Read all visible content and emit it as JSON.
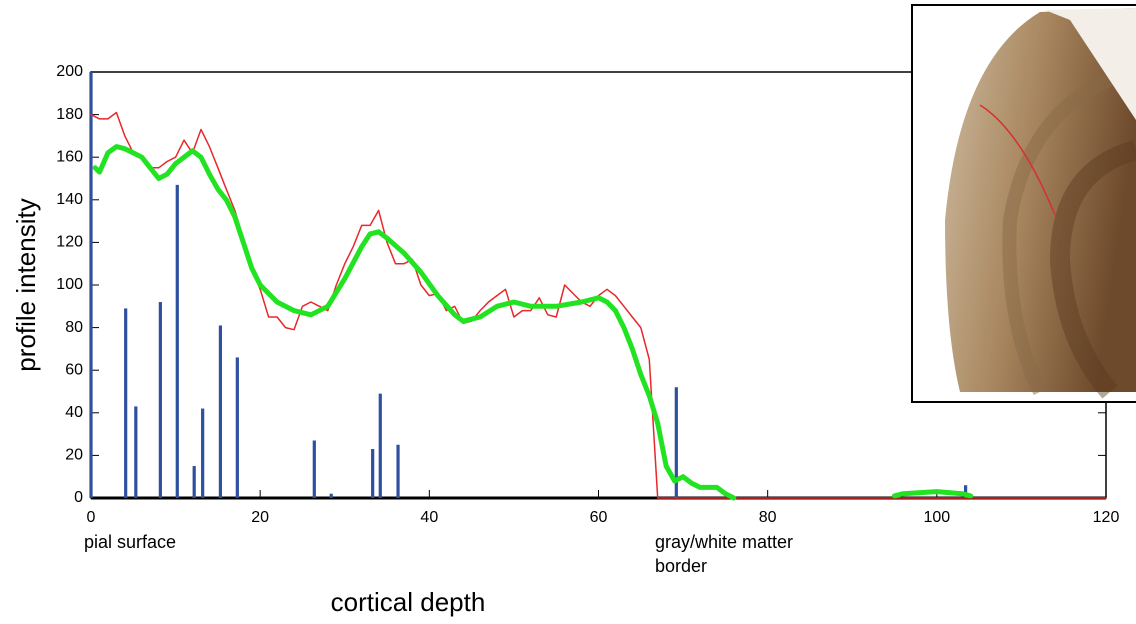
{
  "chart_data": {
    "type": "line",
    "xlabel": "cortical depth",
    "ylabel": "profile intensity",
    "xlim": [
      0,
      120
    ],
    "xticks": [
      0,
      20,
      40,
      60,
      80,
      100,
      120
    ],
    "ylim": [
      0,
      200
    ],
    "yticks": [
      0,
      20,
      40,
      60,
      80,
      100,
      120,
      140,
      160,
      180,
      200
    ],
    "annotations": [
      "pial surface",
      "gray/white matter border"
    ],
    "series": [
      {
        "type": "bar",
        "color": "#2f4f9f",
        "x": [
          0,
          4.1,
          5.3,
          8.2,
          10.2,
          12.2,
          13.2,
          15.3,
          17.3,
          26.4,
          28.4,
          33.3,
          34.2,
          36.3,
          69.2,
          103.4
        ],
        "values": [
          200,
          89,
          43,
          92,
          147,
          15,
          42,
          81,
          66,
          27,
          2,
          23,
          49,
          25,
          52,
          6
        ]
      },
      {
        "type": "line",
        "color": "#e8282a",
        "width": 1.5,
        "x": [
          0,
          1,
          2,
          3,
          4,
          5,
          6,
          7,
          8,
          9,
          10,
          11,
          12,
          13,
          14,
          15,
          16,
          17,
          18,
          19,
          20,
          21,
          22,
          23,
          24,
          25,
          26,
          27,
          28,
          29,
          30,
          31,
          32,
          33,
          34,
          35,
          36,
          37,
          38,
          39,
          40,
          41,
          42,
          43,
          44,
          45,
          46,
          47,
          48,
          49,
          50,
          51,
          52,
          53,
          54,
          55,
          56,
          57,
          58,
          59,
          60,
          61,
          62,
          63,
          64,
          65,
          66,
          67,
          120
        ],
        "values": [
          180,
          178,
          178,
          181,
          170,
          162,
          160,
          155,
          155,
          158,
          160,
          168,
          162,
          173,
          165,
          155,
          145,
          135,
          122,
          108,
          98,
          85,
          85,
          80,
          79,
          90,
          92,
          90,
          88,
          100,
          110,
          118,
          128,
          128,
          135,
          120,
          110,
          110,
          112,
          100,
          95,
          96,
          88,
          90,
          82,
          83,
          88,
          92,
          95,
          98,
          85,
          88,
          88,
          94,
          86,
          85,
          100,
          96,
          92,
          90,
          95,
          98,
          95,
          90,
          85,
          80,
          65,
          0,
          0
        ]
      },
      {
        "type": "line",
        "color": "#22e322",
        "width": 5,
        "x": [
          0.5,
          1,
          2,
          3,
          4,
          5,
          6,
          7,
          8,
          9,
          10,
          11,
          12,
          13,
          14,
          15,
          16,
          17,
          18,
          19,
          20,
          22,
          24,
          26,
          28,
          30,
          32,
          33,
          34,
          35,
          37,
          39,
          41,
          43,
          44,
          46,
          48,
          50,
          52,
          55,
          58,
          60,
          61,
          62,
          63,
          64,
          65,
          66,
          67,
          68,
          69,
          70,
          71,
          72,
          74,
          75,
          76,
          null,
          95,
          96,
          100,
          103,
          104
        ],
        "values": [
          155,
          153,
          162,
          165,
          164,
          162,
          160,
          155,
          150,
          152,
          157,
          160,
          163,
          160,
          152,
          145,
          140,
          132,
          120,
          108,
          100,
          92,
          88,
          86,
          90,
          103,
          118,
          124,
          125,
          122,
          115,
          106,
          95,
          86,
          83,
          85,
          90,
          92,
          90,
          90,
          92,
          94,
          92,
          88,
          80,
          70,
          58,
          48,
          35,
          15,
          8,
          10,
          7,
          5,
          5,
          2,
          0,
          null,
          1,
          2,
          3,
          2,
          1
        ]
      }
    ]
  }
}
